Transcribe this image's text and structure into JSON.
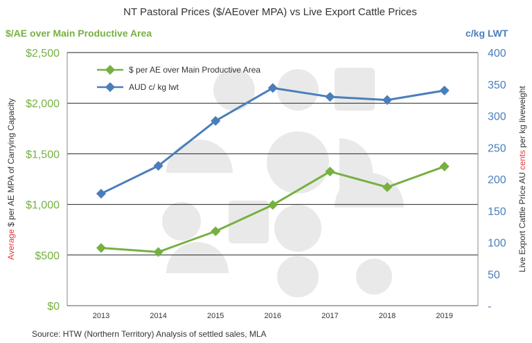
{
  "chart_data": {
    "type": "line",
    "title": "NT Pastoral  Prices ($/AEover MPA) vs Live Export Cattle Prices",
    "left_header": "$/AE over Main Productive Area",
    "right_header": "c/kg LWT",
    "ylabel_left": {
      "prefix": "Average",
      "rest": " $ per AE MPA of Carrying Capacity"
    },
    "ylabel_right": {
      "before": "Live Export Cattle Price AU ",
      "highlight": "cents",
      "after": " per kg liveweight"
    },
    "source": "Source:  HTW (Northern Territory)  Analysis of settled sales, MLA",
    "x": [
      "2013",
      "2014",
      "2015",
      "2016",
      "2017",
      "2018",
      "2019"
    ],
    "y_left_ticks": [
      "$0",
      "$500",
      "$1,000",
      "$1,500",
      "$2,000",
      "$2,500"
    ],
    "y_left_lim": [
      0,
      2500
    ],
    "y_right_ticks": [
      "-",
      "50",
      "100",
      "150",
      "200",
      "250",
      "300",
      "350",
      "400"
    ],
    "y_right_lim": [
      0,
      400
    ],
    "grid": true,
    "legend_position": "top-left",
    "series": [
      {
        "name": "$ per AE over Main Productive Area",
        "axis": "left",
        "color": "#76b041",
        "values": [
          570,
          530,
          735,
          995,
          1325,
          1170,
          1375
        ]
      },
      {
        "name": "AUD c/ kg lwt",
        "axis": "right",
        "color": "#4a7ebb",
        "values": [
          177,
          221,
          292,
          344,
          330,
          325,
          340
        ]
      }
    ],
    "colors": {
      "left_axis": "#76b041",
      "right_axis": "#4a7ebb",
      "highlight": "#e83838"
    }
  }
}
